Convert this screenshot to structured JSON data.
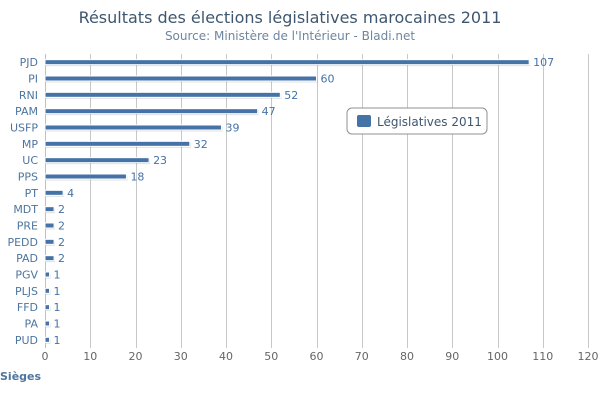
{
  "chart_data": {
    "type": "bar",
    "orientation": "horizontal",
    "title": "Résultats des élections législatives marocaines 2011",
    "subtitle": "Source: Ministère de l'Intérieur - Bladi.net",
    "xlabel": "Sièges",
    "categories": [
      "PJD",
      "PI",
      "RNI",
      "PAM",
      "USFP",
      "MP",
      "UC",
      "PPS",
      "PT",
      "MDT",
      "PRE",
      "PEDD",
      "PAD",
      "PGV",
      "PLJS",
      "FFD",
      "PA",
      "PUD"
    ],
    "series": [
      {
        "name": "Législatives 2011",
        "color": "#4572a7",
        "values": [
          107,
          60,
          52,
          47,
          39,
          32,
          23,
          18,
          4,
          2,
          2,
          2,
          2,
          1,
          1,
          1,
          1,
          1
        ]
      }
    ],
    "xlim": [
      0,
      120
    ],
    "ticks": [
      0,
      10,
      20,
      30,
      40,
      50,
      60,
      70,
      80,
      90,
      100,
      110,
      120
    ],
    "grid": true,
    "legend_position": "top-right"
  }
}
